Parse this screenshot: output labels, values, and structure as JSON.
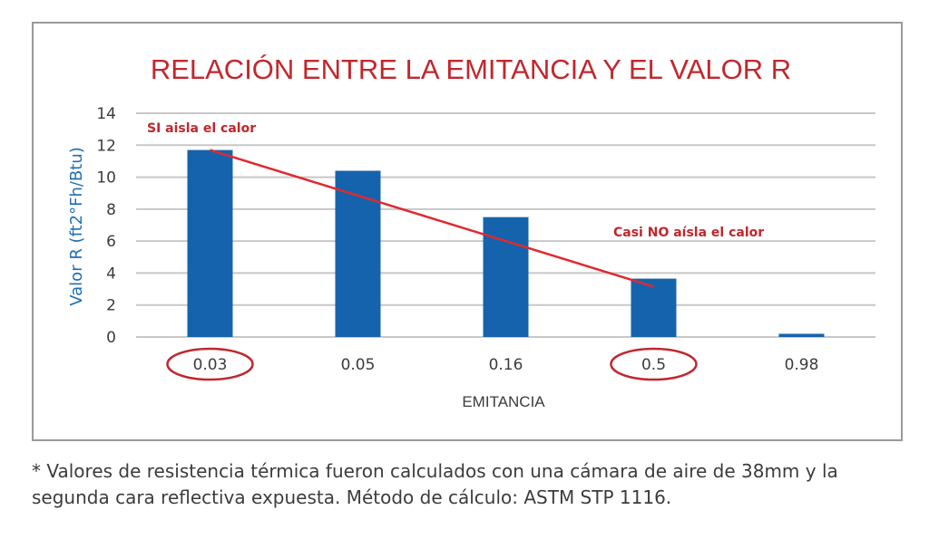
{
  "chart_data": {
    "type": "bar",
    "title": "RELACIÓN ENTRE LA EMITANCIA Y EL VALOR R",
    "xlabel": "EMITANCIA",
    "ylabel": "Valor R (ft2°Fh/Btu)",
    "ylim": [
      0,
      14
    ],
    "yticks": [
      0,
      2,
      4,
      6,
      8,
      10,
      12,
      14
    ],
    "categories": [
      "0.03",
      "0.05",
      "0.16",
      "0.5",
      "0.98"
    ],
    "series": [
      {
        "values": [
          11.7,
          10.4,
          7.5,
          3.65,
          0.2
        ]
      }
    ],
    "grid": true,
    "circled_categories": [
      "0.03",
      "0.5"
    ],
    "trend_line": {
      "from": {
        "category": "0.03",
        "value": 11.7
      },
      "to": {
        "category": "0.5",
        "value": 3.15
      }
    },
    "annotations": [
      {
        "text": "SI aisla el calor"
      },
      {
        "text": "Casi NO aísla el calor"
      }
    ],
    "colors": {
      "bar": "#1663ad",
      "trend": "#e0292f",
      "annotation": "#c0272d",
      "title": "#c1272d",
      "ylabel": "#1f6fb5",
      "grid": "#c8c8c8"
    }
  },
  "footnote": "* Valores de resistencia térmica fueron calculados con una cámara de aire de 38mm y la segunda cara reflectiva expuesta. Método de cálculo: ASTM STP 1116."
}
